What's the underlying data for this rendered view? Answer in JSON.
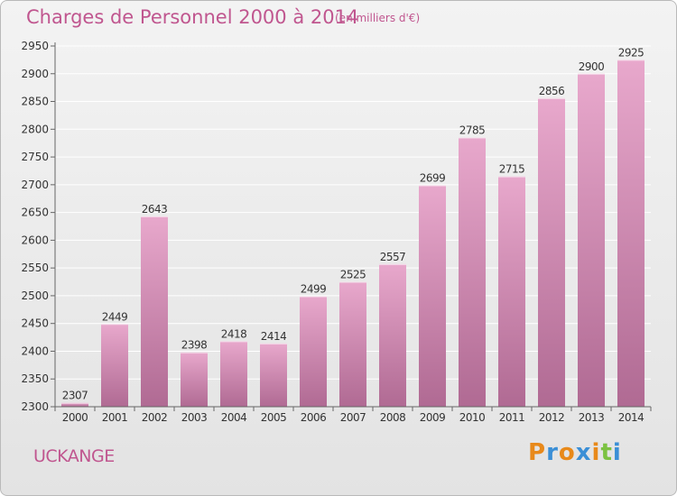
{
  "header": {
    "title": "Charges de Personnel 2000 à 2014",
    "unit": "(en milliers d'€)"
  },
  "footer": {
    "city": "UCKANGE",
    "logo": "Proxiti",
    "logo_colors": [
      "#e8891a",
      "#3b8fd6",
      "#e8891a",
      "#3b8fd6",
      "#e8891a",
      "#7cc242",
      "#3b8fd6"
    ]
  },
  "colors": {
    "title": "#c0568f",
    "bar_top": "#e8a8cc",
    "bar_bottom": "#b06a93",
    "grid": "#ffffff",
    "background": "#ebebeb"
  },
  "chart_data": {
    "type": "bar",
    "categories": [
      "2000",
      "2001",
      "2002",
      "2003",
      "2004",
      "2005",
      "2006",
      "2007",
      "2008",
      "2009",
      "2010",
      "2011",
      "2012",
      "2013",
      "2014"
    ],
    "values": [
      2307,
      2449,
      2643,
      2398,
      2418,
      2414,
      2499,
      2525,
      2557,
      2699,
      2785,
      2715,
      2856,
      2900,
      2925
    ],
    "ylim": [
      2300,
      2950
    ],
    "yticks": [
      2300,
      2350,
      2400,
      2450,
      2500,
      2550,
      2600,
      2650,
      2700,
      2750,
      2800,
      2850,
      2900,
      2950
    ],
    "grid": true,
    "data_labels": true
  }
}
